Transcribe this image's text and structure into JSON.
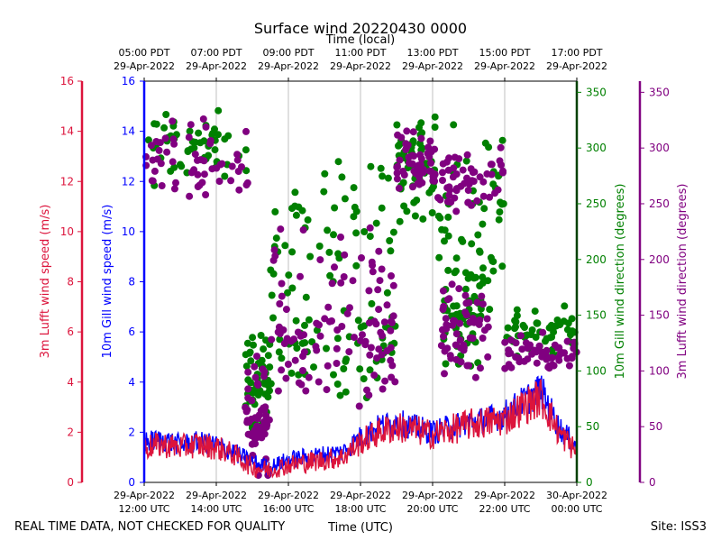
{
  "chart_data": {
    "type": "scatter",
    "title": "Surface wind 20220430 0000",
    "top_axis_label": "Time (local)",
    "top_ticks": [
      {
        "hour": 12,
        "time": "05:00 PDT",
        "date": "29-Apr-2022"
      },
      {
        "hour": 14,
        "time": "07:00 PDT",
        "date": "29-Apr-2022"
      },
      {
        "hour": 16,
        "time": "09:00 PDT",
        "date": "29-Apr-2022"
      },
      {
        "hour": 18,
        "time": "11:00 PDT",
        "date": "29-Apr-2022"
      },
      {
        "hour": 20,
        "time": "13:00 PDT",
        "date": "29-Apr-2022"
      },
      {
        "hour": 22,
        "time": "15:00 PDT",
        "date": "29-Apr-2022"
      },
      {
        "hour": 24,
        "time": "17:00 PDT",
        "date": "29-Apr-2022"
      }
    ],
    "xlabel": "Time (UTC)",
    "bottom_ticks": [
      {
        "hour": 12,
        "date": "29-Apr-2022",
        "time": "12:00 UTC"
      },
      {
        "hour": 14,
        "date": "29-Apr-2022",
        "time": "14:00 UTC"
      },
      {
        "hour": 16,
        "date": "29-Apr-2022",
        "time": "16:00 UTC"
      },
      {
        "hour": 18,
        "date": "29-Apr-2022",
        "time": "18:00 UTC"
      },
      {
        "hour": 20,
        "date": "29-Apr-2022",
        "time": "20:00 UTC"
      },
      {
        "hour": 22,
        "date": "29-Apr-2022",
        "time": "22:00 UTC"
      },
      {
        "hour": 24,
        "date": "30-Apr-2022",
        "time": "00:00 UTC"
      }
    ],
    "xlim": [
      12,
      24
    ],
    "left_axes": [
      {
        "label": "3m Lufft wind speed (m/s)",
        "color": "#dc143c",
        "ylim": [
          0,
          16
        ],
        "ticks": [
          0,
          2,
          4,
          6,
          8,
          10,
          12,
          14,
          16
        ]
      },
      {
        "label": "10m Gill wind speed (m/s)",
        "color": "#0000ff",
        "ylim": [
          0,
          16
        ],
        "ticks": [
          0,
          2,
          4,
          6,
          8,
          10,
          12,
          14,
          16
        ]
      }
    ],
    "right_axes": [
      {
        "label": "10m Gill wind direction (degrees)",
        "color": "#008000",
        "ylim": [
          0,
          360
        ],
        "ticks": [
          0,
          50,
          100,
          150,
          200,
          250,
          300,
          350
        ]
      },
      {
        "label": "3m Lufft wind direction (degrees)",
        "color": "#800080",
        "ylim": [
          0,
          360
        ],
        "ticks": [
          0,
          50,
          100,
          150,
          200,
          250,
          300,
          350
        ]
      }
    ],
    "series": [
      {
        "name": "10m Gill wind speed",
        "kind": "line",
        "axis": "left_gill",
        "color": "#0000ff",
        "x": [
          12.0,
          12.5,
          13.0,
          13.5,
          14.0,
          14.5,
          15.0,
          15.5,
          16.0,
          16.5,
          17.0,
          17.5,
          18.0,
          18.5,
          19.0,
          19.5,
          20.0,
          20.5,
          21.0,
          21.5,
          22.0,
          22.5,
          23.0,
          23.5,
          24.0
        ],
        "y": [
          1.6,
          1.7,
          1.5,
          1.6,
          1.5,
          1.2,
          0.8,
          0.6,
          0.9,
          1.0,
          1.1,
          1.2,
          1.8,
          2.2,
          2.4,
          2.2,
          2.0,
          2.2,
          2.4,
          2.5,
          2.7,
          3.2,
          3.7,
          2.2,
          1.4
        ],
        "amplitude": 0.5
      },
      {
        "name": "3m Lufft wind speed",
        "kind": "line",
        "axis": "left_lufft",
        "color": "#dc143c",
        "x": [
          12.0,
          12.5,
          13.0,
          13.5,
          14.0,
          14.5,
          15.0,
          15.5,
          16.0,
          16.5,
          17.0,
          17.5,
          18.0,
          18.5,
          19.0,
          19.5,
          20.0,
          20.5,
          21.0,
          21.5,
          22.0,
          22.5,
          23.0,
          23.5,
          24.0
        ],
        "y": [
          1.4,
          1.5,
          1.4,
          1.5,
          1.4,
          1.1,
          0.6,
          0.5,
          0.7,
          0.8,
          0.9,
          1.0,
          1.6,
          2.0,
          2.2,
          2.1,
          1.9,
          2.1,
          2.3,
          2.4,
          2.5,
          3.0,
          3.4,
          2.0,
          1.2
        ],
        "amplitude": 0.6
      },
      {
        "name": "10m Gill wind direction",
        "kind": "scatter",
        "axis": "right_gill",
        "color": "#008000",
        "clusters": [
          {
            "from": 12.0,
            "to": 14.9,
            "center": 300,
            "spread": 30
          },
          {
            "from": 14.8,
            "to": 15.5,
            "center": 90,
            "spread": 40
          },
          {
            "from": 15.5,
            "to": 19.0,
            "center": 120,
            "spread": 50
          },
          {
            "from": 15.5,
            "to": 19.0,
            "center": 230,
            "spread": 80
          },
          {
            "from": 19.0,
            "to": 20.1,
            "center": 280,
            "spread": 50
          },
          {
            "from": 20.1,
            "to": 22.0,
            "center": 240,
            "spread": 70
          },
          {
            "from": 20.2,
            "to": 21.4,
            "center": 150,
            "spread": 40
          },
          {
            "from": 22.0,
            "to": 24.0,
            "center": 135,
            "spread": 20
          }
        ]
      },
      {
        "name": "3m Lufft wind direction",
        "kind": "scatter",
        "axis": "right_lufft",
        "color": "#800080",
        "clusters": [
          {
            "from": 12.0,
            "to": 14.9,
            "center": 285,
            "spread": 35
          },
          {
            "from": 14.8,
            "to": 15.5,
            "center": 55,
            "spread": 45
          },
          {
            "from": 15.5,
            "to": 19.0,
            "center": 110,
            "spread": 45
          },
          {
            "from": 15.5,
            "to": 19.0,
            "center": 160,
            "spread": 60
          },
          {
            "from": 19.0,
            "to": 20.1,
            "center": 285,
            "spread": 30
          },
          {
            "from": 20.1,
            "to": 22.0,
            "center": 270,
            "spread": 30
          },
          {
            "from": 20.2,
            "to": 21.6,
            "center": 135,
            "spread": 40
          },
          {
            "from": 22.0,
            "to": 24.0,
            "center": 115,
            "spread": 15
          }
        ]
      }
    ],
    "grid": true
  },
  "footer": {
    "disclaimer": "REAL TIME DATA, NOT CHECKED FOR QUALITY",
    "site": "Site: ISS3"
  }
}
